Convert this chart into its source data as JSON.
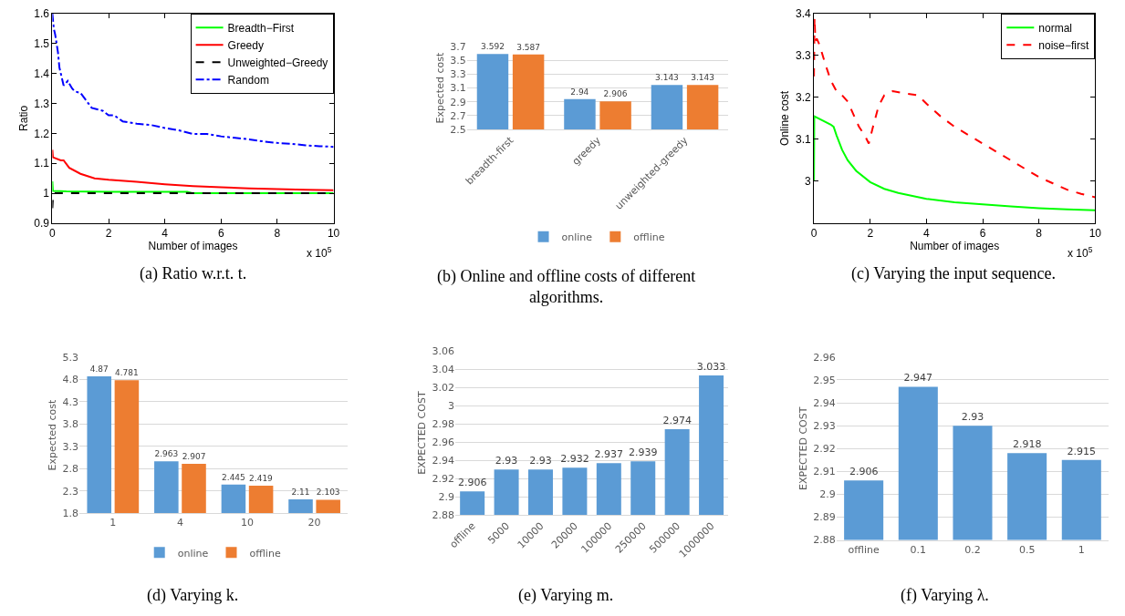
{
  "chart_data": [
    {
      "type": "line",
      "title": "(a) Ratio w.r.t. t.",
      "xlabel": "Number of images",
      "ylabel": "Ratio",
      "annotations": [
        "x 10$^{5}$"
      ],
      "xlim": [
        0,
        10
      ],
      "xticks": [
        0,
        2,
        4,
        6,
        8,
        10
      ],
      "ylim": [
        0.9,
        1.6
      ],
      "yticks": [
        0.9,
        1,
        1.1,
        1.2,
        1.3,
        1.4,
        1.5,
        1.6
      ],
      "legend": "top right",
      "series": [
        {
          "name": "Breadth−First",
          "color": "#00ff00",
          "line_style": "solid",
          "x": [
            0,
            0.02,
            0.5,
            2,
            4,
            4.8,
            5,
            7,
            10
          ],
          "values": [
            1.04,
            1.008,
            1.006,
            1.005,
            1.005,
            1.005,
            1.0,
            1.0,
            1.0
          ]
        },
        {
          "name": "Greedy",
          "color": "#ff0000",
          "line_style": "solid",
          "x": [
            0,
            0.02,
            0.3,
            0.4,
            0.6,
            1.0,
            1.5,
            2,
            3,
            4,
            5,
            6,
            7,
            8,
            9,
            10
          ],
          "values": [
            1.145,
            1.12,
            1.11,
            1.11,
            1.085,
            1.065,
            1.05,
            1.045,
            1.038,
            1.03,
            1.024,
            1.02,
            1.016,
            1.014,
            1.012,
            1.01
          ]
        },
        {
          "name": "Unweighted−Greedy",
          "color": "#000000",
          "line_style": "dashed",
          "x": [
            0,
            0.03,
            1,
            5,
            10
          ],
          "values": [
            0.95,
            1.0,
            1.0,
            1.0,
            1.0
          ]
        },
        {
          "name": "Random",
          "color": "#0000ff",
          "line_style": "dashdot",
          "x": [
            0,
            0.05,
            0.1,
            0.2,
            0.25,
            0.35,
            0.4,
            0.5,
            0.55,
            0.7,
            0.8,
            1.0,
            1.2,
            1.4,
            1.6,
            1.8,
            2.0,
            2.2,
            2.5,
            3,
            3.5,
            4,
            4.5,
            5,
            5.5,
            6,
            6.5,
            7,
            7.5,
            8,
            8.5,
            9,
            9.5,
            10
          ],
          "values": [
            1.6,
            1.55,
            1.53,
            1.47,
            1.42,
            1.38,
            1.36,
            1.37,
            1.375,
            1.35,
            1.34,
            1.335,
            1.31,
            1.285,
            1.28,
            1.275,
            1.26,
            1.26,
            1.24,
            1.232,
            1.228,
            1.218,
            1.21,
            1.198,
            1.198,
            1.19,
            1.185,
            1.18,
            1.173,
            1.168,
            1.165,
            1.16,
            1.157,
            1.155
          ]
        }
      ]
    },
    {
      "type": "bar",
      "title": "(b) Online and offline costs of different algorithms.",
      "ylabel": "Expected cost",
      "categories": [
        "breadth-first",
        "greedy",
        "unweighted-greedy"
      ],
      "ylim": [
        2.5,
        3.7
      ],
      "yticks": [
        2.5,
        2.7,
        2.9,
        3.1,
        3.3,
        3.5,
        3.7
      ],
      "grid": "y",
      "legend": "bottom",
      "data_labels": true,
      "series": [
        {
          "name": "online",
          "color": "#5b9bd5",
          "values": [
            3.592,
            2.94,
            3.143
          ]
        },
        {
          "name": "offline",
          "color": "#ed7d31",
          "values": [
            3.587,
            2.906,
            3.143
          ]
        }
      ]
    },
    {
      "type": "line",
      "title": "(c) Varying the input sequence.",
      "xlabel": "Number of images",
      "ylabel": "Online cost",
      "annotations": [
        "x 10$^{5}$"
      ],
      "xlim": [
        0,
        10
      ],
      "xticks": [
        0,
        2,
        4,
        6,
        8,
        10
      ],
      "ylim": [
        2.9,
        3.4
      ],
      "yticks": [
        3,
        3.1,
        3.2,
        3.3,
        3.4
      ],
      "legend": "top right",
      "series": [
        {
          "name": "normal",
          "color": "#00ff00",
          "line_style": "solid",
          "x": [
            0,
            0.01,
            0.3,
            0.6,
            0.7,
            0.8,
            1.0,
            1.2,
            1.5,
            2,
            2.5,
            3,
            4,
            5,
            6,
            7,
            8,
            9,
            10
          ],
          "values": [
            3.0,
            3.155,
            3.145,
            3.135,
            3.13,
            3.11,
            3.075,
            3.05,
            3.025,
            2.998,
            2.982,
            2.972,
            2.958,
            2.95,
            2.945,
            2.94,
            2.936,
            2.933,
            2.931
          ]
        },
        {
          "name": "noise−first",
          "color": "#ff0000",
          "line_style": "dashed",
          "x": [
            0,
            0.02,
            0.05,
            0.1,
            0.2,
            0.4,
            0.6,
            0.8,
            1.0,
            1.2,
            1.4,
            1.6,
            1.8,
            1.95,
            2.1,
            2.3,
            2.5,
            2.8,
            3.2,
            3.7,
            4,
            4.5,
            5,
            5.5,
            6,
            6.5,
            7,
            7.5,
            8,
            8.5,
            9,
            9.5,
            10
          ],
          "values": [
            3.25,
            3.39,
            3.335,
            3.34,
            3.325,
            3.28,
            3.24,
            3.215,
            3.205,
            3.19,
            3.16,
            3.13,
            3.11,
            3.09,
            3.13,
            3.18,
            3.205,
            3.215,
            3.21,
            3.205,
            3.185,
            3.155,
            3.13,
            3.11,
            3.09,
            3.07,
            3.05,
            3.03,
            3.01,
            2.995,
            2.98,
            2.97,
            2.962
          ]
        }
      ]
    },
    {
      "type": "bar",
      "title": "(d) Varying k.",
      "ylabel": "Expected cost",
      "categories": [
        "1",
        "4",
        "10",
        "20"
      ],
      "ylim": [
        1.8,
        5.3
      ],
      "yticks": [
        1.8,
        2.3,
        2.8,
        3.3,
        3.8,
        4.3,
        4.8,
        5.3
      ],
      "grid": "y",
      "legend": "bottom",
      "data_labels": true,
      "series": [
        {
          "name": "online",
          "color": "#5b9bd5",
          "values": [
            4.87,
            2.963,
            2.445,
            2.11
          ]
        },
        {
          "name": "offline",
          "color": "#ed7d31",
          "values": [
            4.781,
            2.907,
            2.419,
            2.103
          ]
        }
      ]
    },
    {
      "type": "bar",
      "title": "(e) Varying m.",
      "ylabel": "EXPECTED COST",
      "categories": [
        "offline",
        "5000",
        "10000",
        "20000",
        "100000",
        "250000",
        "500000",
        "1000000"
      ],
      "ylim": [
        2.88,
        3.06
      ],
      "yticks": [
        2.88,
        2.9,
        2.92,
        2.94,
        2.96,
        2.98,
        3,
        3.02,
        3.04,
        3.06
      ],
      "grid": "y",
      "data_labels": true,
      "series": [
        {
          "color": "#5b9bd5",
          "values": [
            2.906,
            2.93,
            2.93,
            2.932,
            2.937,
            2.939,
            2.974,
            3.033
          ]
        }
      ]
    },
    {
      "type": "bar",
      "title": "(f) Varying λ.",
      "ylabel": "EXPECTED COST",
      "categories": [
        "offline",
        "0.1",
        "0.2",
        "0.5",
        "1"
      ],
      "ylim": [
        2.88,
        2.96
      ],
      "yticks": [
        2.88,
        2.89,
        2.9,
        2.91,
        2.92,
        2.93,
        2.94,
        2.95,
        2.96
      ],
      "grid": "y",
      "data_labels": true,
      "series": [
        {
          "color": "#5b9bd5",
          "values": [
            2.906,
            2.947,
            2.93,
            2.918,
            2.915
          ]
        }
      ]
    }
  ]
}
